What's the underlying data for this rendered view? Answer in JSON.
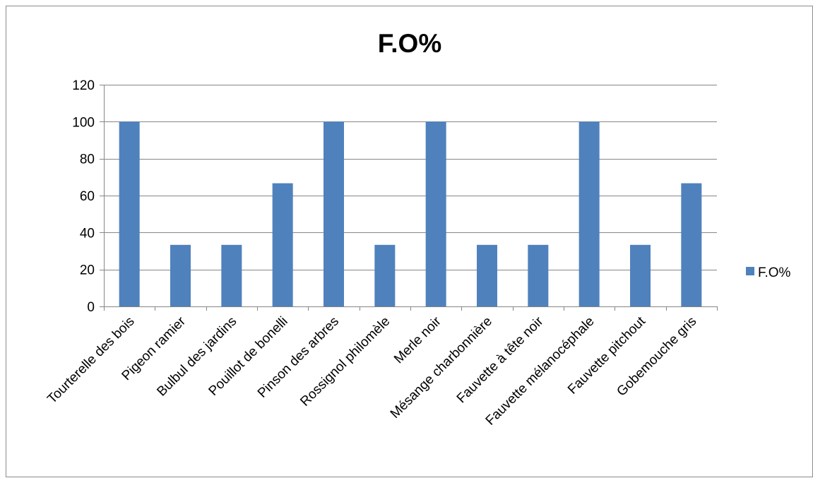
{
  "chart_data": {
    "type": "bar",
    "title": "F.O%",
    "categories": [
      "Tourterelle des bois",
      "Pigeon ramier",
      "Bulbul des jardins",
      "Pouillot de bonelli",
      "Pinson des arbres",
      "Rossignol philomèle",
      "Merle noir",
      "Mésange charbonnière",
      "Fauvette à tête noir",
      "Fauvette mélanocéphale",
      "Fauvette pitchout",
      "Gobemouche gris"
    ],
    "series": [
      {
        "name": "F.O%",
        "color": "#4f81bd",
        "values": [
          100,
          33.33,
          33.33,
          66.67,
          100,
          33.33,
          100,
          33.33,
          33.33,
          100,
          33.33,
          66.67
        ]
      }
    ],
    "yticks": [
      "0",
      "20",
      "40",
      "60",
      "80",
      "100",
      "120"
    ],
    "ylim": [
      0,
      120
    ],
    "grid": true,
    "legend": "right"
  }
}
